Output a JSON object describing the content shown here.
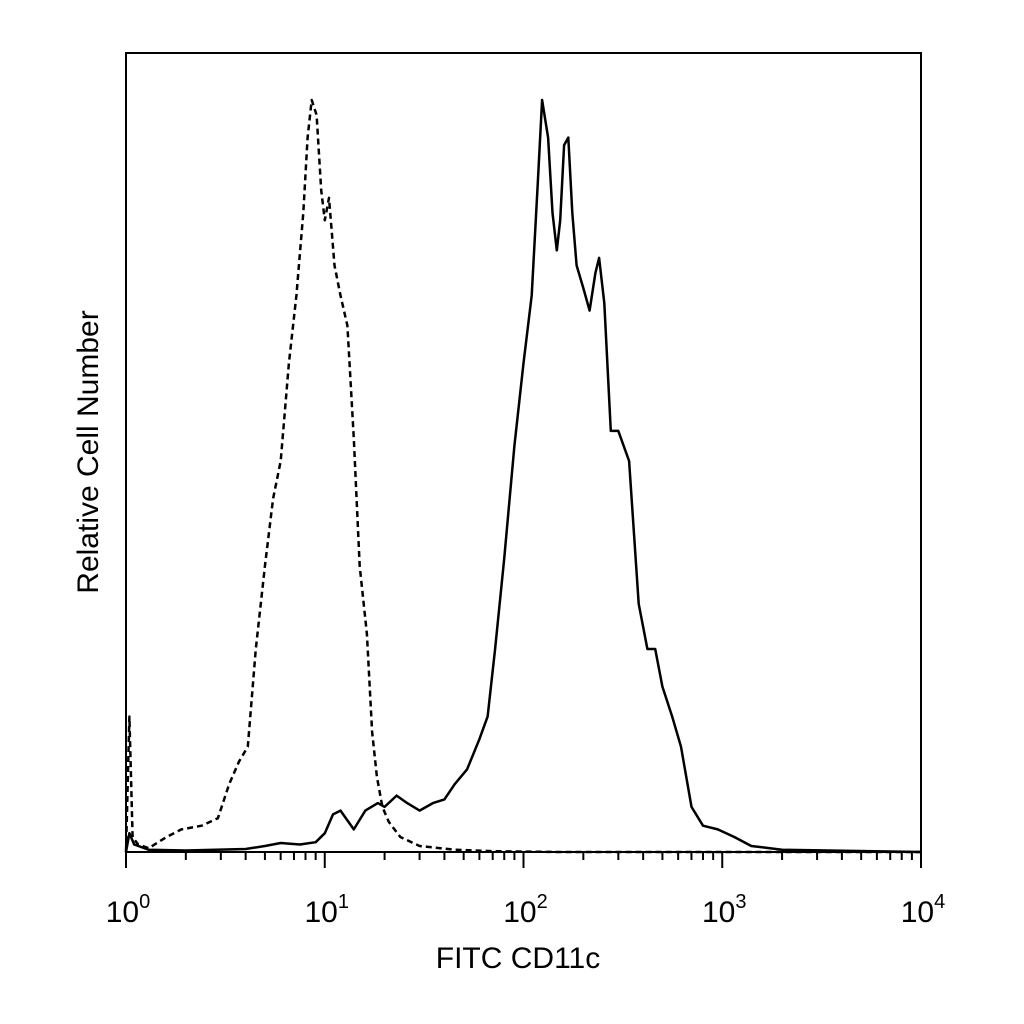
{
  "chart_data": {
    "type": "line",
    "xlabel": "FITC CD11c",
    "ylabel": "Relative Cell Number",
    "x_scale": "log",
    "xlim": [
      1,
      10000
    ],
    "ylim": [
      0,
      1
    ],
    "grid": false,
    "x_ticks": [
      {
        "base": "10",
        "exp": "0",
        "value": 1
      },
      {
        "base": "10",
        "exp": "1",
        "value": 10
      },
      {
        "base": "10",
        "exp": "2",
        "value": 100
      },
      {
        "base": "10",
        "exp": "3",
        "value": 1000
      },
      {
        "base": "10",
        "exp": "4",
        "value": 10000
      }
    ],
    "series": [
      {
        "style": "dashed",
        "color": "#000000",
        "points": [
          [
            1.0,
            0.0
          ],
          [
            1.04,
            0.18
          ],
          [
            1.08,
            0.02
          ],
          [
            1.15,
            0.01
          ],
          [
            1.3,
            0.005
          ],
          [
            1.6,
            0.02
          ],
          [
            1.9,
            0.03
          ],
          [
            2.4,
            0.035
          ],
          [
            2.9,
            0.045
          ],
          [
            3.3,
            0.09
          ],
          [
            3.7,
            0.12
          ],
          [
            4.1,
            0.14
          ],
          [
            4.5,
            0.27
          ],
          [
            5.0,
            0.38
          ],
          [
            5.5,
            0.47
          ],
          [
            6.0,
            0.52
          ],
          [
            6.6,
            0.65
          ],
          [
            7.2,
            0.74
          ],
          [
            7.8,
            0.85
          ],
          [
            8.2,
            0.95
          ],
          [
            8.6,
            1.0
          ],
          [
            9.1,
            0.98
          ],
          [
            9.6,
            0.88
          ],
          [
            10.0,
            0.84
          ],
          [
            10.5,
            0.87
          ],
          [
            11.2,
            0.78
          ],
          [
            12.0,
            0.74
          ],
          [
            13.0,
            0.7
          ],
          [
            14.0,
            0.55
          ],
          [
            15.0,
            0.38
          ],
          [
            16.3,
            0.29
          ],
          [
            17.3,
            0.16
          ],
          [
            18.3,
            0.1
          ],
          [
            19.5,
            0.06
          ],
          [
            21.0,
            0.04
          ],
          [
            24.0,
            0.02
          ],
          [
            30.0,
            0.008
          ],
          [
            45.0,
            0.003
          ],
          [
            70.0,
            0.001
          ],
          [
            150.0,
            0.0
          ],
          [
            1000.0,
            0.0
          ],
          [
            10000.0,
            0.0
          ]
        ]
      },
      {
        "style": "solid",
        "color": "#000000",
        "points": [
          [
            1.0,
            0.0
          ],
          [
            1.04,
            0.025
          ],
          [
            1.1,
            0.01
          ],
          [
            1.3,
            0.003
          ],
          [
            2.0,
            0.002
          ],
          [
            4.0,
            0.004
          ],
          [
            5.0,
            0.008
          ],
          [
            6.0,
            0.012
          ],
          [
            7.5,
            0.01
          ],
          [
            9.0,
            0.013
          ],
          [
            10.0,
            0.025
          ],
          [
            11.0,
            0.05
          ],
          [
            12.0,
            0.055
          ],
          [
            13.0,
            0.042
          ],
          [
            14.0,
            0.03
          ],
          [
            16.0,
            0.055
          ],
          [
            18.5,
            0.065
          ],
          [
            20.0,
            0.06
          ],
          [
            23.0,
            0.075
          ],
          [
            26.0,
            0.065
          ],
          [
            30.0,
            0.055
          ],
          [
            35.0,
            0.065
          ],
          [
            40.0,
            0.07
          ],
          [
            45.0,
            0.09
          ],
          [
            52.0,
            0.11
          ],
          [
            60.0,
            0.15
          ],
          [
            66.0,
            0.18
          ],
          [
            72.0,
            0.27
          ],
          [
            80.0,
            0.39
          ],
          [
            90.0,
            0.54
          ],
          [
            100.0,
            0.65
          ],
          [
            110.0,
            0.74
          ],
          [
            118.0,
            0.89
          ],
          [
            124.0,
            1.0
          ],
          [
            133.0,
            0.95
          ],
          [
            140.0,
            0.85
          ],
          [
            147.0,
            0.8
          ],
          [
            153.0,
            0.84
          ],
          [
            160.0,
            0.94
          ],
          [
            168.0,
            0.95
          ],
          [
            176.0,
            0.85
          ],
          [
            185.0,
            0.78
          ],
          [
            200.0,
            0.75
          ],
          [
            215.0,
            0.72
          ],
          [
            230.0,
            0.77
          ],
          [
            240.0,
            0.79
          ],
          [
            255.0,
            0.73
          ],
          [
            275.0,
            0.56
          ],
          [
            300.0,
            0.56
          ],
          [
            340.0,
            0.52
          ],
          [
            380.0,
            0.33
          ],
          [
            420.0,
            0.27
          ],
          [
            460.0,
            0.27
          ],
          [
            500.0,
            0.22
          ],
          [
            560.0,
            0.18
          ],
          [
            620.0,
            0.14
          ],
          [
            700.0,
            0.06
          ],
          [
            800.0,
            0.035
          ],
          [
            950.0,
            0.03
          ],
          [
            1150.0,
            0.02
          ],
          [
            1400.0,
            0.008
          ],
          [
            2000.0,
            0.003
          ],
          [
            10000.0,
            0.0
          ]
        ]
      }
    ]
  }
}
